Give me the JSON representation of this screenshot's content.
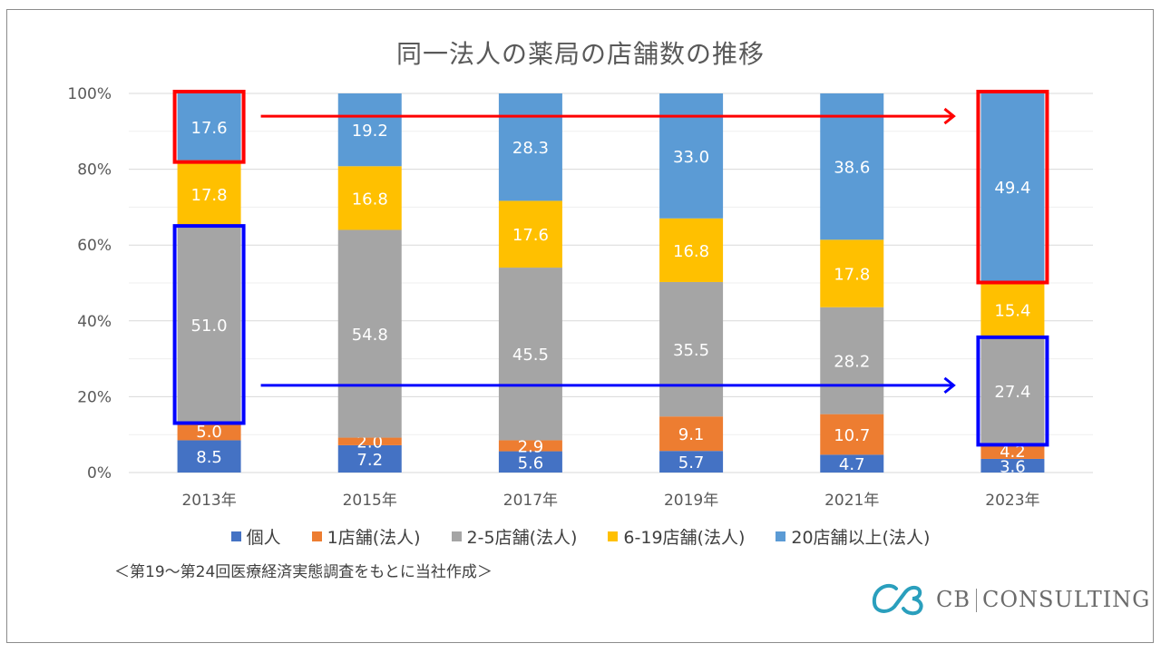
{
  "chart_data": {
    "type": "bar",
    "stacked": true,
    "percent": true,
    "title": "同一法人の薬局の店舗数の推移",
    "xlabel": "",
    "ylabel": "",
    "ylim": [
      0,
      100
    ],
    "yticks": [
      "0%",
      "20%",
      "40%",
      "60%",
      "80%",
      "100%"
    ],
    "grid": true,
    "legend_position": "bottom",
    "categories": [
      "2013年",
      "2015年",
      "2017年",
      "2019年",
      "2021年",
      "2023年"
    ],
    "series": [
      {
        "name": "個人",
        "color": "#4472c4",
        "values": [
          8.5,
          7.2,
          5.6,
          5.7,
          4.7,
          3.6
        ]
      },
      {
        "name": "1店舗(法人)",
        "color": "#ed7d31",
        "values": [
          5.0,
          2.0,
          2.9,
          9.1,
          10.7,
          4.2
        ]
      },
      {
        "name": "2-5店舗(法人)",
        "color": "#a5a5a5",
        "values": [
          51.0,
          54.8,
          45.5,
          35.5,
          28.2,
          27.4
        ]
      },
      {
        "name": "6-19店舗(法人)",
        "color": "#ffc000",
        "values": [
          17.8,
          16.8,
          17.6,
          16.8,
          17.8,
          15.4
        ]
      },
      {
        "name": "20店舗以上(法人)",
        "color": "#5b9bd5",
        "values": [
          17.6,
          19.2,
          28.3,
          33.0,
          38.6,
          49.4
        ]
      }
    ],
    "annotations": [
      {
        "type": "highlight-box",
        "color": "#ff0000",
        "category": "2013年",
        "series": "20店舗以上(法人)"
      },
      {
        "type": "highlight-box",
        "color": "#ff0000",
        "category": "2023年",
        "series": "20店舗以上(法人)"
      },
      {
        "type": "highlight-box",
        "color": "#0000ff",
        "category": "2013年",
        "series": "2-5店舗(法人)"
      },
      {
        "type": "highlight-box",
        "color": "#0000ff",
        "category": "2023年",
        "series": "2-5店舗(法人)"
      },
      {
        "type": "arrow",
        "color": "#ff0000",
        "from": "2013年",
        "to": "2023年",
        "series": "20店舗以上(法人)"
      },
      {
        "type": "arrow",
        "color": "#0000ff",
        "from": "2013年",
        "to": "2023年",
        "series": "2-5店舗(法人)"
      }
    ]
  },
  "source_note": "＜第19～第24回医療経済実態調査をもとに当社作成＞",
  "logo": {
    "left": "CB",
    "right": "CONSULTING",
    "icon": "cb-monogram-icon",
    "color": "#2a9fbd"
  }
}
